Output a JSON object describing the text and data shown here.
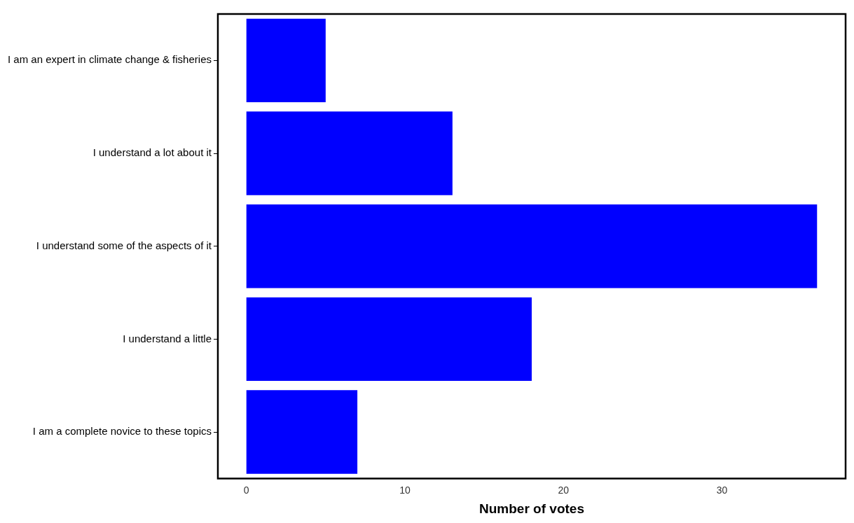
{
  "chart_data": {
    "type": "bar",
    "orientation": "horizontal",
    "xlabel": "Number of votes",
    "categories": [
      "I am an expert in climate change & fisheries",
      "I understand a lot about it",
      "I understand some of the aspects of it",
      "I understand a little",
      "I am a complete novice to these topics"
    ],
    "values": [
      5,
      13,
      36,
      18,
      7
    ],
    "color": "#0000ff",
    "xlim": [
      -1.8,
      37.8
    ],
    "xticks": [
      0,
      10,
      20,
      30
    ],
    "grid": false,
    "legend": false
  }
}
